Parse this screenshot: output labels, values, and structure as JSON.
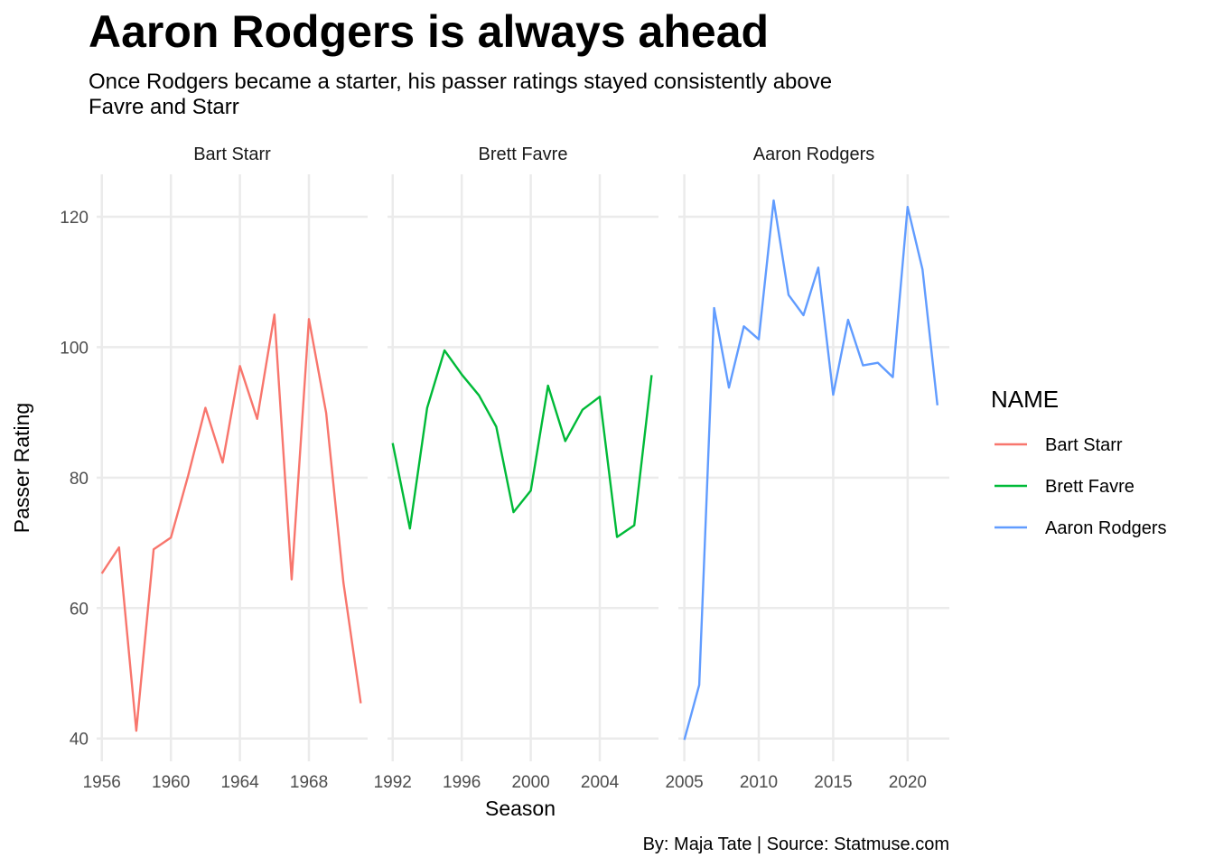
{
  "chart_data": {
    "type": "line",
    "title": "Aaron Rodgers is always ahead",
    "subtitle_lines": [
      "Once Rodgers became a starter, his passer ratings stayed consistently above",
      "Favre and Starr"
    ],
    "xlabel": "Season",
    "ylabel": "Passer Rating",
    "caption": "By: Maja Tate | Source: Statmuse.com",
    "ylim": [
      36.5,
      126.5
    ],
    "y_ticks": [
      40,
      60,
      80,
      100,
      120
    ],
    "grid": true,
    "legend": {
      "title": "NAME",
      "position": "right",
      "items": [
        "Bart Starr",
        "Brett Favre",
        "Aaron Rodgers"
      ]
    },
    "series": [
      {
        "name": "Bart Starr",
        "color": "#F8766D",
        "xlim": [
          1955.7,
          1971.4
        ],
        "x_ticks": [
          1956,
          1960,
          1964,
          1968
        ],
        "x": [
          1956,
          1957,
          1958,
          1959,
          1960,
          1961,
          1962,
          1963,
          1964,
          1965,
          1966,
          1967,
          1968,
          1969,
          1970,
          1971
        ],
        "y": [
          65.3,
          69.3,
          41.2,
          69.0,
          70.8,
          80.3,
          90.7,
          82.3,
          97.1,
          89.0,
          105.0,
          64.4,
          104.3,
          89.9,
          63.9,
          45.4
        ]
      },
      {
        "name": "Brett Favre",
        "color": "#00BA38",
        "xlim": [
          1991.7,
          2007.4
        ],
        "x_ticks": [
          1992,
          1996,
          2000,
          2004
        ],
        "x": [
          1992,
          1993,
          1994,
          1995,
          1996,
          1997,
          1998,
          1999,
          2000,
          2001,
          2002,
          2003,
          2004,
          2005,
          2006,
          2007
        ],
        "y": [
          85.3,
          72.2,
          90.7,
          99.5,
          95.8,
          92.6,
          87.8,
          74.7,
          78.0,
          94.1,
          85.6,
          90.4,
          92.4,
          70.9,
          72.7,
          95.7
        ]
      },
      {
        "name": "Aaron Rodgers",
        "color": "#619CFF",
        "xlim": [
          2004.6,
          2022.8
        ],
        "x_ticks": [
          2005,
          2010,
          2015,
          2020
        ],
        "x": [
          2005,
          2006,
          2007,
          2008,
          2009,
          2010,
          2011,
          2012,
          2013,
          2014,
          2015,
          2016,
          2017,
          2018,
          2019,
          2020,
          2021,
          2022
        ],
        "y": [
          39.8,
          48.2,
          106.0,
          93.8,
          103.2,
          101.2,
          122.5,
          108.0,
          104.9,
          112.2,
          92.7,
          104.2,
          97.2,
          97.6,
          95.4,
          121.5,
          111.9,
          91.1
        ]
      }
    ]
  }
}
